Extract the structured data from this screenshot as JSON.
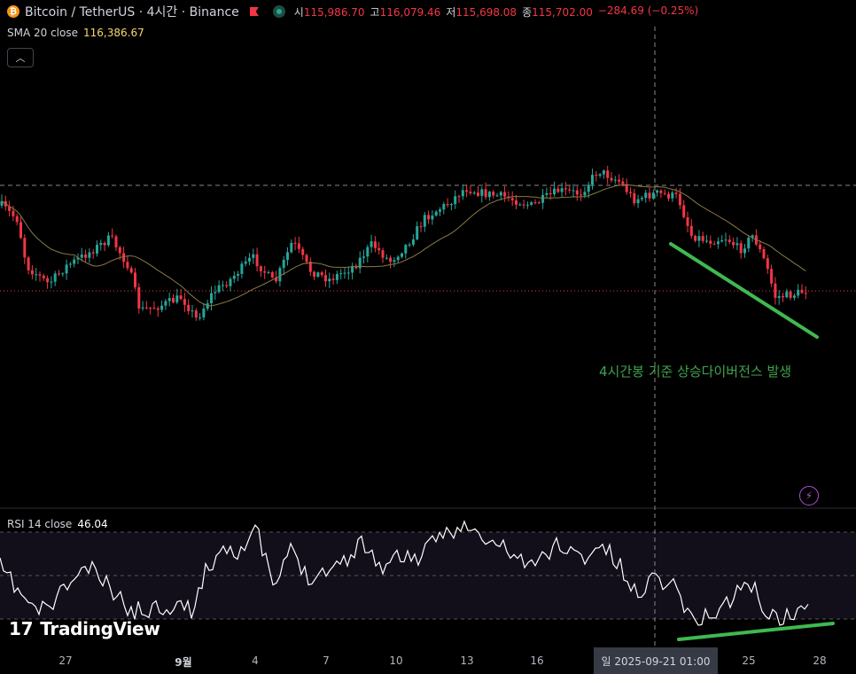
{
  "header": {
    "coin_glyph": "₿",
    "title": "Bitcoin / TetherUS · 4시간 · Binance",
    "ohlc": [
      {
        "label": "시",
        "value": "115,986.70"
      },
      {
        "label": "고",
        "value": "116,079.46"
      },
      {
        "label": "저",
        "value": "115,698.08"
      },
      {
        "label": "종",
        "value": "115,702.00"
      },
      {
        "label": "",
        "value": "−284.69 (−0.25%)"
      }
    ]
  },
  "indicators": {
    "sma_label": "SMA 20 close",
    "sma_value": "116,386.67",
    "rsi_label": "RSI 14 close",
    "rsi_value": "46.04"
  },
  "collapse_icon": "chevron-up-icon",
  "annotation": "4시간봉 기준 상승다이버전스 발생",
  "logo_text": "TradingView",
  "x_axis": {
    "ticks": [
      "27",
      "9월",
      "4",
      "7",
      "10",
      "13",
      "16",
      "25",
      "28"
    ],
    "crosshair_label": "일 2025-09-21   01:00"
  },
  "colors": {
    "up": "#26a69a",
    "down": "#f23645",
    "sma": "#8a7a45",
    "annotation": "#3fa34d",
    "rsi_line": "#ffffff"
  }
}
